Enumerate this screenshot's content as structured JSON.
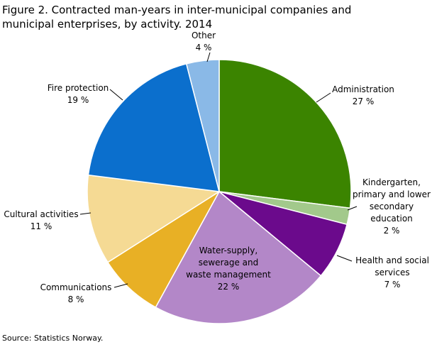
{
  "chart_data": {
    "type": "pie",
    "title": "Figure 2. Contracted man-years in inter-municipal companies and municipal enterprises, by activity. 2014",
    "categories": [
      "Administration",
      "Kindergarten, primary and lower secondary education",
      "Health and social services",
      "Water-supply, sewerage and waste management",
      "Communications",
      "Cultural activities",
      "Fire protection",
      "Other"
    ],
    "values": [
      27,
      2,
      7,
      22,
      8,
      11,
      19,
      4
    ],
    "value_labels": [
      "27 %",
      "2 %",
      "7 %",
      "22 %",
      "8 %",
      "11 %",
      "19 %",
      "4 %"
    ],
    "colors": [
      "#3b8400",
      "#a2c98b",
      "#6b0a8c",
      "#b387c8",
      "#e8b025",
      "#f5da94",
      "#0b6fcd",
      "#8ab9e7"
    ],
    "source": "Source: Statistics Norway."
  }
}
